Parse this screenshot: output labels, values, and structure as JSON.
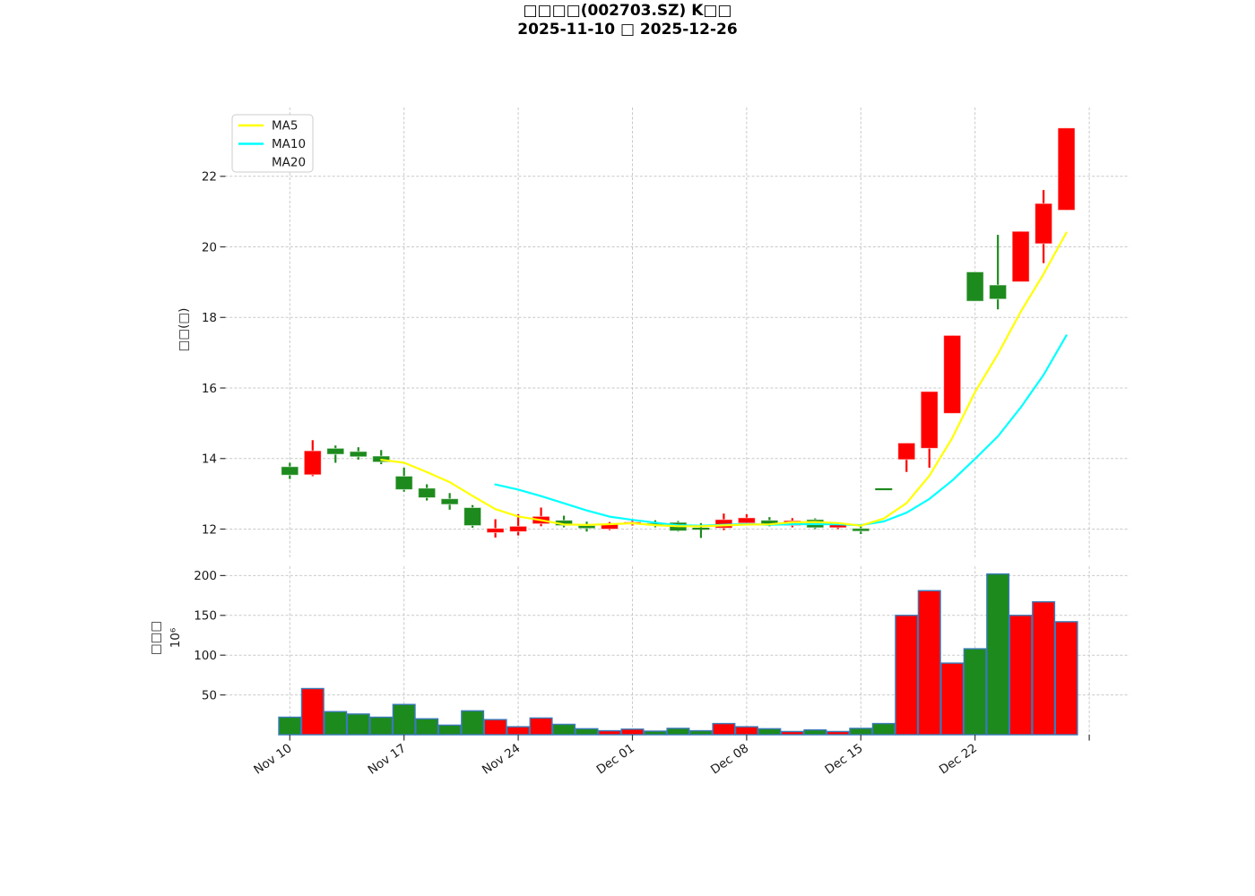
{
  "title": {
    "line1": "□□□□(002703.SZ) K□□",
    "line2": "2025-11-10 □ 2025-12-26"
  },
  "price_axis": {
    "label": "□□(□)",
    "ticks": [
      12,
      14,
      16,
      18,
      20,
      22
    ]
  },
  "volume_axis": {
    "label_line1": "□□□",
    "label_line2": "10⁶",
    "ticks": [
      50,
      100,
      150,
      200
    ]
  },
  "x_axis": {
    "tick_labels": [
      "Nov 10",
      "Nov 17",
      "Nov 24",
      "Dec 01",
      "Dec 08",
      "Dec 15",
      "Dec 22"
    ]
  },
  "legend": {
    "items": [
      {
        "label": "MA5",
        "color": "#ffff00"
      },
      {
        "label": "MA10",
        "color": "#00ffff"
      },
      {
        "label": "MA20",
        "color": "#ffffff"
      }
    ]
  },
  "colors": {
    "up": "#ff0000",
    "down": "#1d8a1d",
    "volume_edge": "#3a7ab8",
    "grid": "#c9c9c9",
    "ma5": "#ffff00",
    "ma10": "#00ffff",
    "ma20": "#ffffff"
  },
  "chart_data": {
    "type": "candlestick",
    "title": "□□□□(002703.SZ) K□□ / 2025-11-10 □ 2025-12-26",
    "xlabel": "",
    "ylabel_price": "□□(□)",
    "ylabel_volume": "□□□ 10⁶",
    "grid": true,
    "legend_position": "upper left",
    "price_ylim": [
      11.2,
      23.95
    ],
    "volume_ylim_millions": [
      0,
      211.7
    ],
    "x_tick_labels": [
      "Nov 10",
      "Nov 17",
      "Nov 24",
      "Dec 01",
      "Dec 08",
      "Dec 15",
      "Dec 22"
    ],
    "series": [
      {
        "name": "MA5",
        "type": "line",
        "window": 5,
        "color": "#ffff00"
      },
      {
        "name": "MA10",
        "type": "line",
        "window": 10,
        "color": "#00ffff"
      },
      {
        "name": "MA20",
        "type": "line",
        "window": 20,
        "color": "#ffffff"
      }
    ],
    "candles": [
      {
        "date": "2025-11-10",
        "open": 13.77,
        "high": 13.88,
        "low": 13.42,
        "close": 13.53,
        "volume_millions": 22
      },
      {
        "date": "2025-11-11",
        "open": 13.54,
        "high": 14.52,
        "low": 13.5,
        "close": 14.22,
        "volume_millions": 58
      },
      {
        "date": "2025-11-12",
        "open": 14.29,
        "high": 14.37,
        "low": 13.88,
        "close": 14.12,
        "volume_millions": 29
      },
      {
        "date": "2025-11-13",
        "open": 14.2,
        "high": 14.32,
        "low": 13.97,
        "close": 14.05,
        "volume_millions": 26
      },
      {
        "date": "2025-11-14",
        "open": 14.07,
        "high": 14.24,
        "low": 13.84,
        "close": 13.9,
        "volume_millions": 22
      },
      {
        "date": "2025-11-17",
        "open": 13.5,
        "high": 13.74,
        "low": 13.06,
        "close": 13.12,
        "volume_millions": 38
      },
      {
        "date": "2025-11-18",
        "open": 13.16,
        "high": 13.27,
        "low": 12.81,
        "close": 12.89,
        "volume_millions": 20
      },
      {
        "date": "2025-11-19",
        "open": 12.86,
        "high": 13.02,
        "low": 12.55,
        "close": 12.7,
        "volume_millions": 12
      },
      {
        "date": "2025-11-20",
        "open": 12.61,
        "high": 12.68,
        "low": 12.04,
        "close": 12.1,
        "volume_millions": 30
      },
      {
        "date": "2025-11-21",
        "open": 11.9,
        "high": 12.28,
        "low": 11.76,
        "close": 12.02,
        "volume_millions": 19
      },
      {
        "date": "2025-11-24",
        "open": 11.93,
        "high": 12.42,
        "low": 11.82,
        "close": 12.08,
        "volume_millions": 10
      },
      {
        "date": "2025-11-25",
        "open": 12.15,
        "high": 12.61,
        "low": 12.08,
        "close": 12.36,
        "volume_millions": 21
      },
      {
        "date": "2025-11-26",
        "open": 12.25,
        "high": 12.38,
        "low": 12.05,
        "close": 12.1,
        "volume_millions": 13
      },
      {
        "date": "2025-11-27",
        "open": 12.1,
        "high": 12.21,
        "low": 11.93,
        "close": 12.02,
        "volume_millions": 7.5
      },
      {
        "date": "2025-11-28",
        "open": 12.0,
        "high": 12.2,
        "low": 11.97,
        "close": 12.14,
        "volume_millions": 5
      },
      {
        "date": "2025-12-01",
        "open": 12.14,
        "high": 12.27,
        "low": 12.1,
        "close": 12.2,
        "volume_millions": 7
      },
      {
        "date": "2025-12-02",
        "open": 12.17,
        "high": 12.25,
        "low": 12.05,
        "close": 12.1,
        "volume_millions": 4.5
      },
      {
        "date": "2025-12-03",
        "open": 12.19,
        "high": 12.23,
        "low": 11.93,
        "close": 11.95,
        "volume_millions": 8
      },
      {
        "date": "2025-12-04",
        "open": 12.01,
        "high": 12.17,
        "low": 11.75,
        "close": 12.0,
        "volume_millions": 5
      },
      {
        "date": "2025-12-05",
        "open": 12.03,
        "high": 12.44,
        "low": 11.97,
        "close": 12.27,
        "volume_millions": 14
      },
      {
        "date": "2025-12-08",
        "open": 12.17,
        "high": 12.42,
        "low": 12.13,
        "close": 12.32,
        "volume_millions": 10
      },
      {
        "date": "2025-12-09",
        "open": 12.25,
        "high": 12.34,
        "low": 12.08,
        "close": 12.13,
        "volume_millions": 7.5
      },
      {
        "date": "2025-12-10",
        "open": 12.1,
        "high": 12.31,
        "low": 12.05,
        "close": 12.24,
        "volume_millions": 4
      },
      {
        "date": "2025-12-11",
        "open": 12.27,
        "high": 12.32,
        "low": 12.0,
        "close": 12.04,
        "volume_millions": 6
      },
      {
        "date": "2025-12-12",
        "open": 12.04,
        "high": 12.18,
        "low": 12.0,
        "close": 12.13,
        "volume_millions": 4
      },
      {
        "date": "2025-12-15",
        "open": 12.02,
        "high": 12.13,
        "low": 11.86,
        "close": 11.94,
        "volume_millions": 8
      },
      {
        "date": "2025-12-16",
        "open": 13.13,
        "high": 13.13,
        "low": 13.13,
        "close": 13.13,
        "volume_millions": 14
      },
      {
        "date": "2025-12-17",
        "open": 13.97,
        "high": 14.44,
        "low": 13.62,
        "close": 14.44,
        "volume_millions": 150
      },
      {
        "date": "2025-12-18",
        "open": 14.29,
        "high": 15.9,
        "low": 13.74,
        "close": 15.9,
        "volume_millions": 181
      },
      {
        "date": "2025-12-19",
        "open": 15.28,
        "high": 17.49,
        "low": 15.28,
        "close": 17.49,
        "volume_millions": 90
      },
      {
        "date": "2025-12-22",
        "open": 19.29,
        "high": 19.29,
        "low": 18.46,
        "close": 18.46,
        "volume_millions": 108
      },
      {
        "date": "2025-12-23",
        "open": 18.92,
        "high": 20.34,
        "low": 18.23,
        "close": 18.52,
        "volume_millions": 202
      },
      {
        "date": "2025-12-24",
        "open": 19.01,
        "high": 20.44,
        "low": 19.01,
        "close": 20.44,
        "volume_millions": 150
      },
      {
        "date": "2025-12-25",
        "open": 20.09,
        "high": 21.61,
        "low": 19.54,
        "close": 21.23,
        "volume_millions": 167
      },
      {
        "date": "2025-12-26",
        "open": 21.04,
        "high": 23.37,
        "low": 21.04,
        "close": 23.37,
        "volume_millions": 142
      }
    ]
  }
}
